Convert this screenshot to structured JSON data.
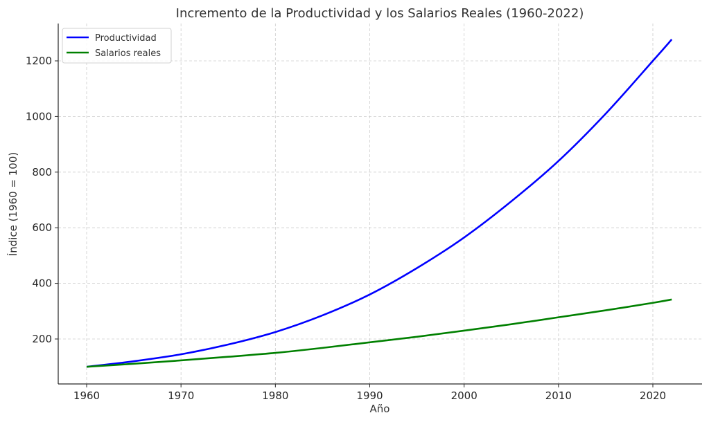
{
  "chart_data": {
    "type": "line",
    "title": "Incremento de la Productividad y los Salarios Reales (1960-2022)",
    "xlabel": "Año",
    "ylabel": "Índice (1960 = 100)",
    "x": [
      1960,
      1965,
      1970,
      1975,
      1980,
      1985,
      1990,
      1995,
      2000,
      2005,
      2010,
      2015,
      2020,
      2022
    ],
    "series": [
      {
        "name": "Productividad",
        "color": "#0000ff",
        "values": [
          100,
          120,
          145,
          180,
          225,
          285,
          360,
          455,
          565,
          695,
          840,
          1010,
          1200,
          1277
        ]
      },
      {
        "name": "Salarios reales",
        "color": "#008000",
        "values": [
          100,
          111,
          123,
          136,
          150,
          168,
          188,
          208,
          230,
          253,
          278,
          303,
          330,
          342
        ]
      }
    ],
    "xticks": [
      1960,
      1970,
      1980,
      1990,
      2000,
      2010,
      2020
    ],
    "yticks": [
      200,
      400,
      600,
      800,
      1000,
      1200
    ],
    "xlim": [
      1956.9,
      2025.1
    ],
    "ylim": [
      41,
      1336
    ],
    "grid": true,
    "legend_position": "upper left"
  }
}
